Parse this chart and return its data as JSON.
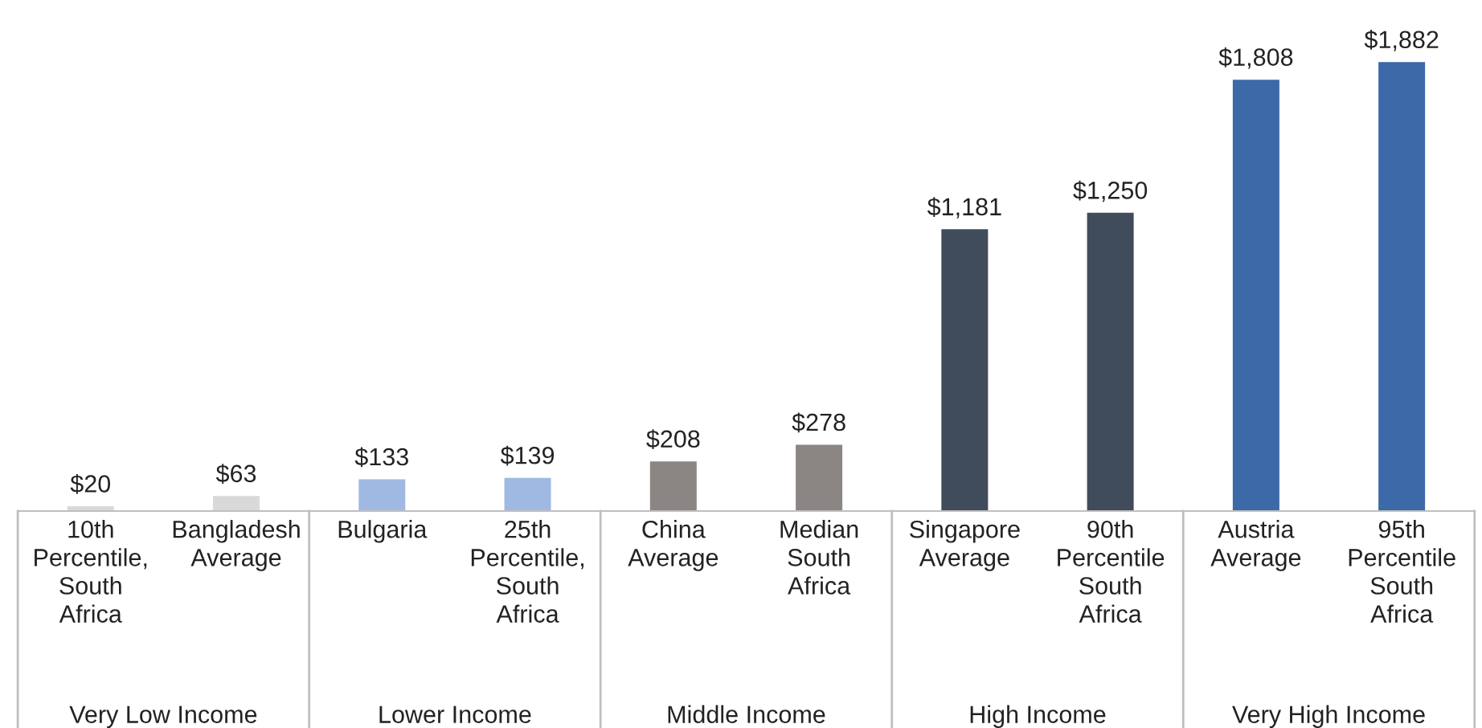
{
  "chart_data": {
    "type": "bar",
    "categories": [
      "10th\nPercentile,\nSouth\nAfrica",
      "Bangladesh\nAverage",
      "Bulgaria",
      "25th\nPercentile,\nSouth\nAfrica",
      "China\nAverage",
      "Median\nSouth\nAfrica",
      "Singapore\nAverage",
      "90th\nPercentile\nSouth\nAfrica",
      "Austria\nAverage",
      "95th\nPercentile\nSouth\nAfrica"
    ],
    "values": [
      20,
      63,
      133,
      139,
      208,
      278,
      1181,
      1250,
      1808,
      1882
    ],
    "value_labels": [
      "$20",
      "$63",
      "$133",
      "$139",
      "$208",
      "$278",
      "$1,181",
      "$1,250",
      "$1,808",
      "$1,882"
    ],
    "colors": [
      "#d9d9d9",
      "#d9d9d9",
      "#9fb9e2",
      "#9fb9e2",
      "#8b8584",
      "#8b8584",
      "#404b5b",
      "#404b5b",
      "#3c69a7",
      "#3c69a7"
    ],
    "annotations": [
      "Very Low Income",
      "Lower Income",
      "Middle Income",
      "High Income",
      "Very High Income"
    ],
    "grid": false,
    "legend": false
  }
}
